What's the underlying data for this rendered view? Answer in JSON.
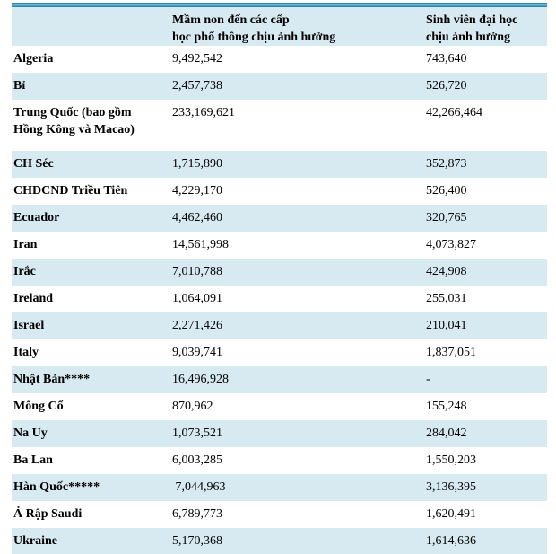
{
  "table": {
    "title_semantic": "affected-students-by-country-table",
    "colors": {
      "row_alt_background": "#d7e9f1",
      "border_dark": "#2e86a6",
      "border_light": "#66b8d6",
      "text": "#000000"
    },
    "columns": [
      {
        "label": "Mầm non đến các cấp\nhọc phổ thông chịu ảnh hưởng"
      },
      {
        "label": "Sinh viên đại học\nchịu ảnh hưởng"
      }
    ],
    "rows": [
      {
        "country": "Algeria",
        "school": "9,492,542",
        "university": "743,640"
      },
      {
        "country": "Bỉ",
        "school": "2,457,738",
        "university": "526,720"
      },
      {
        "country": "Trung Quốc (bao gồm\nHồng Kông và Macao)",
        "school": "233,169,621",
        "university": "42,266,464"
      },
      {
        "country": "CH Séc",
        "school": "1,715,890",
        "university": "352,873"
      },
      {
        "country": "CHDCND Triều Tiên",
        "school": "4,229,170",
        "university": "526,400"
      },
      {
        "country": "Ecuador",
        "school": "4,462,460",
        "university": "320,765"
      },
      {
        "country": "Iran",
        "school": "14,561,998",
        "university": "4,073,827"
      },
      {
        "country": "Irắc",
        "school": "7,010,788",
        "university": "424,908"
      },
      {
        "country": "Ireland",
        "school": "1,064,091",
        "university": "255,031"
      },
      {
        "country": "Israel",
        "school": "2,271,426",
        "university": "210,041"
      },
      {
        "country": "Italy",
        "school": "9,039,741",
        "university": "1,837,051"
      },
      {
        "country": "Nhật Bản****",
        "school": "16,496,928",
        "university": "-"
      },
      {
        "country": "Mông Cổ",
        "school": "870,962",
        "university": "155,248"
      },
      {
        "country": "Na Uy",
        "school": "1,073,521",
        "university": "284,042"
      },
      {
        "country": "Ba Lan",
        "school": "6,003,285",
        "university": "1,550,203"
      },
      {
        "country": "Hàn Quốc*****",
        "school": " 7,044,963",
        "university": "3,136,395"
      },
      {
        "country": "Ả Rập Saudi",
        "school": "6,789,773",
        "university": "1,620,491"
      },
      {
        "country": "Ukraine",
        "school": "5,170,368",
        "university": "1,614,636"
      }
    ]
  }
}
